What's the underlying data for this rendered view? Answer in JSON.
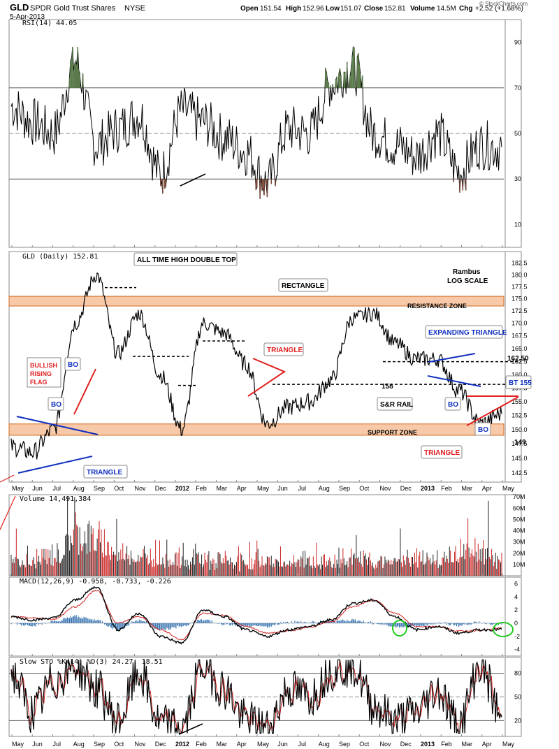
{
  "header": {
    "symbol": "GLD",
    "name": "SPDR Gold Trust Shares",
    "exchange": "NYSE",
    "date": "5-Apr-2013",
    "open_label": "Open",
    "open": "151.54",
    "high_label": "High",
    "high": "152.96",
    "low_label": "Low",
    "low": "151.07",
    "close_label": "Close",
    "close": "152.81",
    "volume_label": "Volume",
    "volume": "14.5M",
    "chg_label": "Chg",
    "chg": "+2.52 (+1.68%)",
    "watermark": "© StockCharts.com"
  },
  "colors": {
    "price": "#000000",
    "zone_fill": "#f7c9a8",
    "zone_border": "#d2691e",
    "red_ann": "#e02020",
    "blue_ann": "#1030c0",
    "rsi_fill_green": "#5a7a4a",
    "rsi_fill_brown": "#7a4a3a",
    "volume_up": "#222222",
    "volume_down": "#cc2222",
    "macd_hist": "#2a6aaa",
    "signal": "#d02020",
    "circle": "#22cc22"
  },
  "x_axis": {
    "labels": [
      "May",
      "Jun",
      "Jul",
      "Aug",
      "Sep",
      "Oct",
      "Nov",
      "Dec",
      "2012",
      "Feb",
      "Mar",
      "Apr",
      "May",
      "Jun",
      "Jul",
      "Aug",
      "Sep",
      "Oct",
      "Nov",
      "Dec",
      "2013",
      "Feb",
      "Mar",
      "Apr",
      "May"
    ],
    "bold": [
      "2012",
      "2013"
    ]
  },
  "chart_data": [
    {
      "type": "line",
      "title": "RSI(14) 44.05",
      "ylim": [
        0,
        100
      ],
      "y_ticks": [
        10,
        30,
        50,
        70,
        90
      ],
      "reference_lines": [
        30,
        50,
        70
      ],
      "x": [
        "2011-05",
        "2011-06",
        "2011-07",
        "2011-08",
        "2011-09",
        "2011-10",
        "2011-11",
        "2011-12",
        "2012-01",
        "2012-02",
        "2012-03",
        "2012-04",
        "2012-05",
        "2012-06",
        "2012-07",
        "2012-08",
        "2012-09",
        "2012-10",
        "2012-11",
        "2012-12",
        "2013-01",
        "2013-02",
        "2013-03",
        "2013-04"
      ],
      "values": [
        62,
        55,
        50,
        82,
        45,
        52,
        58,
        32,
        60,
        55,
        48,
        42,
        28,
        52,
        50,
        72,
        80,
        50,
        45,
        40,
        50,
        33,
        45,
        44
      ]
    },
    {
      "type": "line",
      "title": "GLD (Daily) 152.81",
      "subtitle": "Rambus LOG SCALE",
      "y_scale": "log",
      "ylim": [
        141,
        185
      ],
      "y_ticks": [
        "142.5",
        "145.0",
        "147.5",
        "150.0",
        "152.5",
        "155.0",
        "157.5",
        "160.0",
        "162.5",
        "165.0",
        "167.5",
        "170.0",
        "172.5",
        "175.0",
        "177.5",
        "180.0",
        "182.5"
      ],
      "x": [
        "2011-05",
        "2011-06",
        "2011-07",
        "2011-08",
        "2011-09",
        "2011-10",
        "2011-11",
        "2011-12",
        "2012-01",
        "2012-02",
        "2012-03",
        "2012-04",
        "2012-05",
        "2012-06",
        "2012-07",
        "2012-08",
        "2012-09",
        "2012-10",
        "2012-11",
        "2012-12",
        "2013-01",
        "2013-02",
        "2013-03",
        "2013-04"
      ],
      "values": [
        147,
        146,
        150,
        170,
        180,
        164,
        172,
        160,
        150,
        170,
        168,
        162,
        151,
        154,
        155,
        159,
        171,
        172,
        166,
        163,
        163,
        157,
        151,
        152.81
      ],
      "zones": [
        {
          "label": "RESISTANCE ZONE",
          "range": [
            173.5,
            175.5
          ]
        },
        {
          "label": "SUPPORT ZONE",
          "range": [
            149.0,
            151.0
          ]
        }
      ],
      "levels": [
        {
          "label": "162.50",
          "value": 162.5
        },
        {
          "label": "158",
          "value": 158.2
        },
        {
          "label": "149",
          "value": 149
        }
      ],
      "annotations": [
        "ALL TIME HIGH DOUBLE TOP",
        "RECTANGLE",
        "RESISTANCE ZONE",
        "SUPPORT ZONE",
        "TRIANGLE",
        "TRIANGLE",
        "TRIANGLE",
        "BULLISH RISING FLAG",
        "BO",
        "BO",
        "BO",
        "BO",
        "EXPANDING TRIANGLE",
        "S&R RAIL",
        "BT 155",
        "162.50",
        "158",
        "149"
      ]
    },
    {
      "type": "bar",
      "title": "Volume 14,491,384",
      "y_ticks": [
        "10M",
        "20M",
        "30M",
        "40M",
        "50M",
        "60M",
        "70M"
      ],
      "ylim": [
        0,
        72
      ],
      "x": [
        "2011-05",
        "2011-06",
        "2011-07",
        "2011-08",
        "2011-09",
        "2011-10",
        "2011-11",
        "2011-12",
        "2012-01",
        "2012-02",
        "2012-03",
        "2012-04",
        "2012-05",
        "2012-06",
        "2012-07",
        "2012-08",
        "2012-09",
        "2012-10",
        "2012-11",
        "2012-12",
        "2013-01",
        "2013-02",
        "2013-03",
        "2013-04"
      ],
      "values": [
        15,
        14,
        16,
        38,
        30,
        20,
        17,
        18,
        15,
        14,
        13,
        12,
        14,
        13,
        12,
        13,
        15,
        13,
        14,
        16,
        15,
        20,
        22,
        14.5
      ]
    },
    {
      "type": "line",
      "title": "MACD(12,26,9) -0.958, -0.733, -0.226",
      "ylim": [
        -5,
        7
      ],
      "y_ticks": [
        -4,
        -2,
        0,
        2,
        4,
        6
      ],
      "x": [
        "2011-05",
        "2011-06",
        "2011-07",
        "2011-08",
        "2011-09",
        "2011-10",
        "2011-11",
        "2011-12",
        "2012-01",
        "2012-02",
        "2012-03",
        "2012-04",
        "2012-05",
        "2012-06",
        "2012-07",
        "2012-08",
        "2012-09",
        "2012-10",
        "2012-11",
        "2012-12",
        "2013-01",
        "2013-02",
        "2013-03",
        "2013-04"
      ],
      "series": [
        {
          "name": "MACD(12,26,9)",
          "values": [
            1,
            0.5,
            0.8,
            3.5,
            5.5,
            -1,
            1.5,
            -2,
            -3,
            2,
            1,
            -1,
            -2,
            -1,
            -0.5,
            0.5,
            3,
            3.5,
            1,
            -1,
            -0.5,
            -1.5,
            -1,
            -0.958
          ]
        },
        {
          "name": "signal",
          "values": [
            1,
            0.8,
            0.6,
            2.5,
            5,
            0,
            1,
            -1,
            -2.5,
            1.5,
            1.2,
            -0.5,
            -1.5,
            -1.2,
            -0.6,
            0.2,
            2.5,
            3.5,
            1.5,
            -0.5,
            -0.5,
            -1.2,
            -1.1,
            -0.733
          ]
        }
      ]
    },
    {
      "type": "line",
      "title": "Slow STO %K(14) %D(3) 24.27, 18.51",
      "ylim": [
        0,
        100
      ],
      "y_ticks": [
        20,
        50,
        80
      ],
      "reference_lines": [
        20,
        50,
        80
      ],
      "x": [
        "2011-05",
        "2011-06",
        "2011-07",
        "2011-08",
        "2011-09",
        "2011-10",
        "2011-11",
        "2011-12",
        "2012-01",
        "2012-02",
        "2012-03",
        "2012-04",
        "2012-05",
        "2012-06",
        "2012-07",
        "2012-08",
        "2012-09",
        "2012-10",
        "2012-11",
        "2012-12",
        "2013-01",
        "2013-02",
        "2013-03",
        "2013-04"
      ],
      "series": [
        {
          "name": "%K(14)",
          "values": [
            80,
            30,
            70,
            90,
            60,
            20,
            80,
            15,
            10,
            90,
            60,
            20,
            10,
            60,
            50,
            85,
            90,
            40,
            20,
            30,
            60,
            15,
            90,
            24.27
          ]
        },
        {
          "name": "%D(3)",
          "values": [
            75,
            35,
            65,
            85,
            62,
            25,
            75,
            20,
            12,
            85,
            62,
            25,
            12,
            55,
            52,
            80,
            88,
            45,
            25,
            32,
            55,
            18,
            85,
            18.51
          ]
        }
      ]
    }
  ]
}
